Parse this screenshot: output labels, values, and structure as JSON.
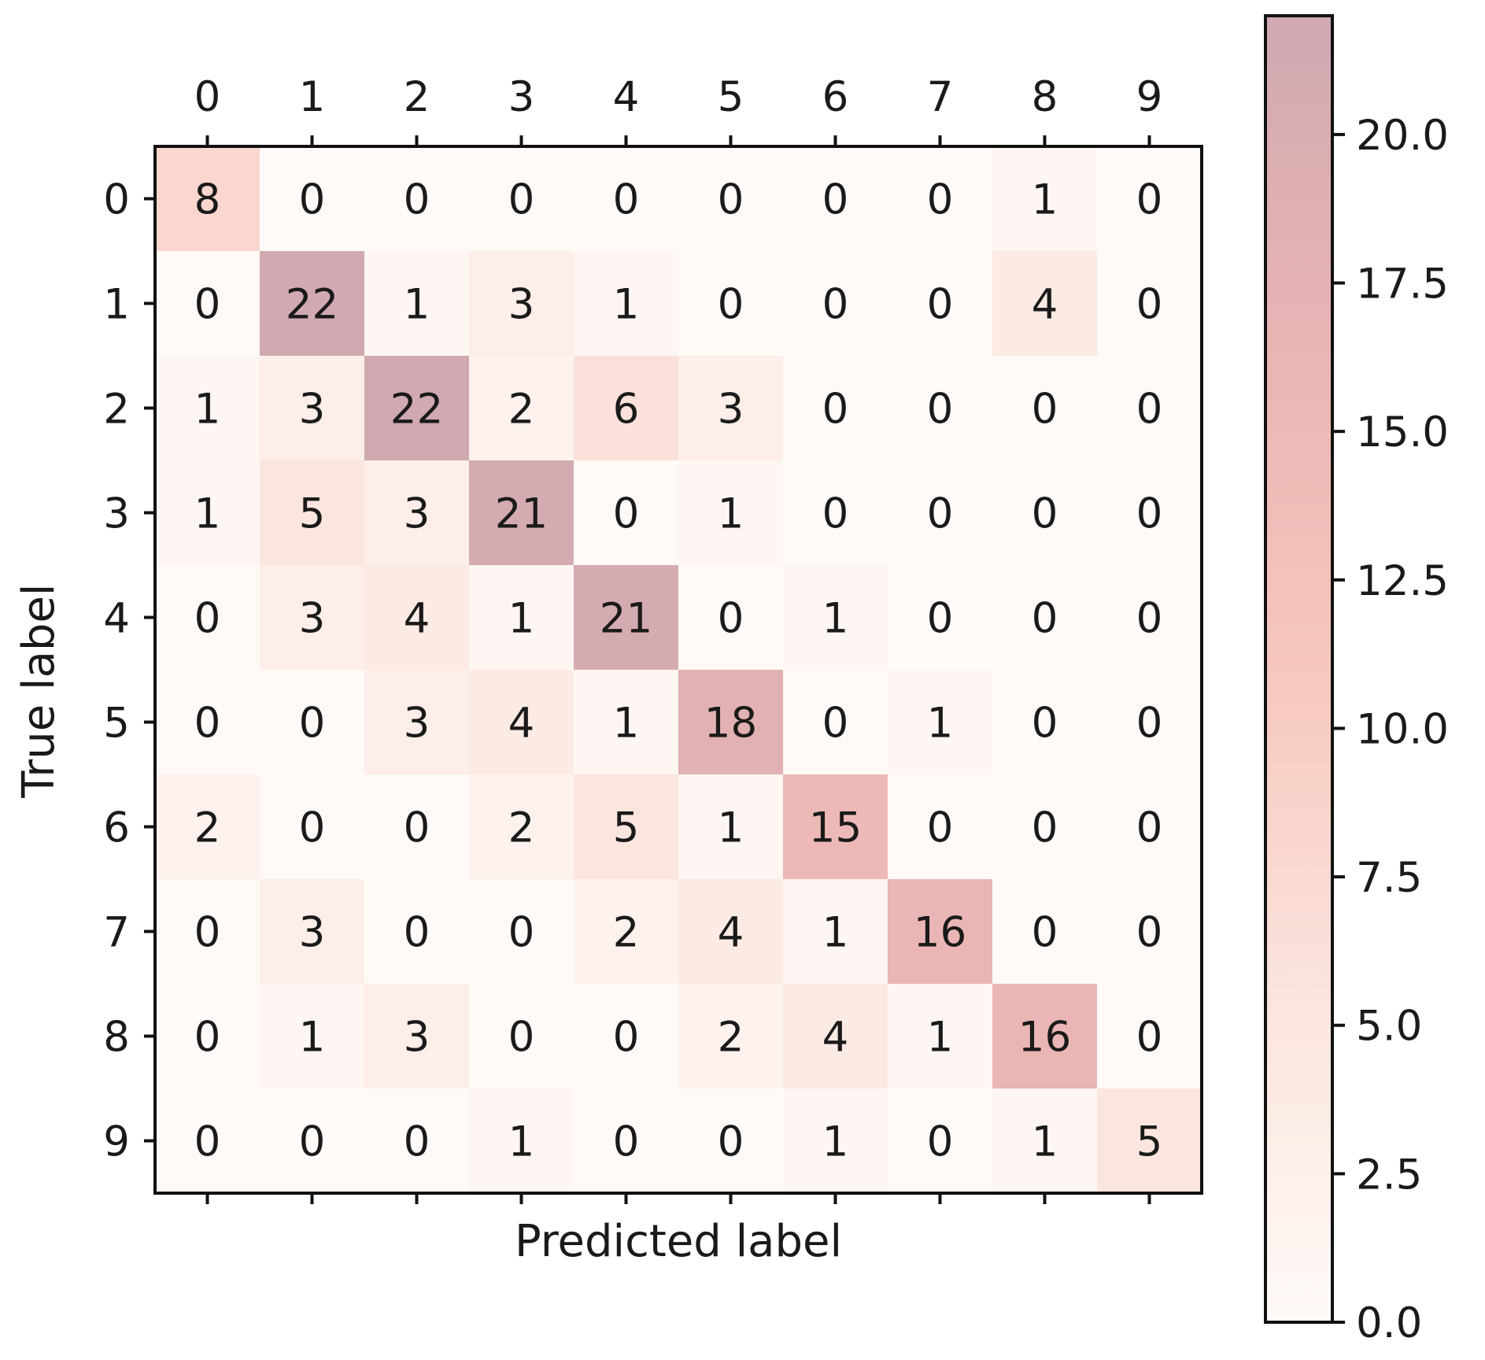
{
  "chart_data": {
    "type": "heatmap",
    "xlabel": "Predicted label",
    "ylabel": "True label",
    "x_categories": [
      "0",
      "1",
      "2",
      "3",
      "4",
      "5",
      "6",
      "7",
      "8",
      "9"
    ],
    "y_categories": [
      "0",
      "1",
      "2",
      "3",
      "4",
      "5",
      "6",
      "7",
      "8",
      "9"
    ],
    "x_ticks_position": "top-and-bottom",
    "matrix": [
      [
        8,
        0,
        0,
        0,
        0,
        0,
        0,
        0,
        1,
        0
      ],
      [
        0,
        22,
        1,
        3,
        1,
        0,
        0,
        0,
        4,
        0
      ],
      [
        1,
        3,
        22,
        2,
        6,
        3,
        0,
        0,
        0,
        0
      ],
      [
        1,
        5,
        3,
        21,
        0,
        1,
        0,
        0,
        0,
        0
      ],
      [
        0,
        3,
        4,
        1,
        21,
        0,
        1,
        0,
        0,
        0
      ],
      [
        0,
        0,
        3,
        4,
        1,
        18,
        0,
        1,
        0,
        0
      ],
      [
        2,
        0,
        0,
        2,
        5,
        1,
        15,
        0,
        0,
        0
      ],
      [
        0,
        3,
        0,
        0,
        2,
        4,
        1,
        16,
        0,
        0
      ],
      [
        0,
        1,
        3,
        0,
        0,
        2,
        4,
        1,
        16,
        0
      ],
      [
        0,
        0,
        0,
        1,
        0,
        0,
        1,
        0,
        1,
        5
      ]
    ],
    "colorbar": {
      "min": 0,
      "max": 22,
      "ticks": [
        "0.0",
        "2.5",
        "5.0",
        "7.5",
        "10.0",
        "12.5",
        "15.0",
        "17.5",
        "20.0"
      ],
      "colors": [
        "#fffaf7",
        "#fbe4dd",
        "#f6c7be",
        "#e9b4b4",
        "#d0a9b1"
      ]
    },
    "grid": false
  }
}
